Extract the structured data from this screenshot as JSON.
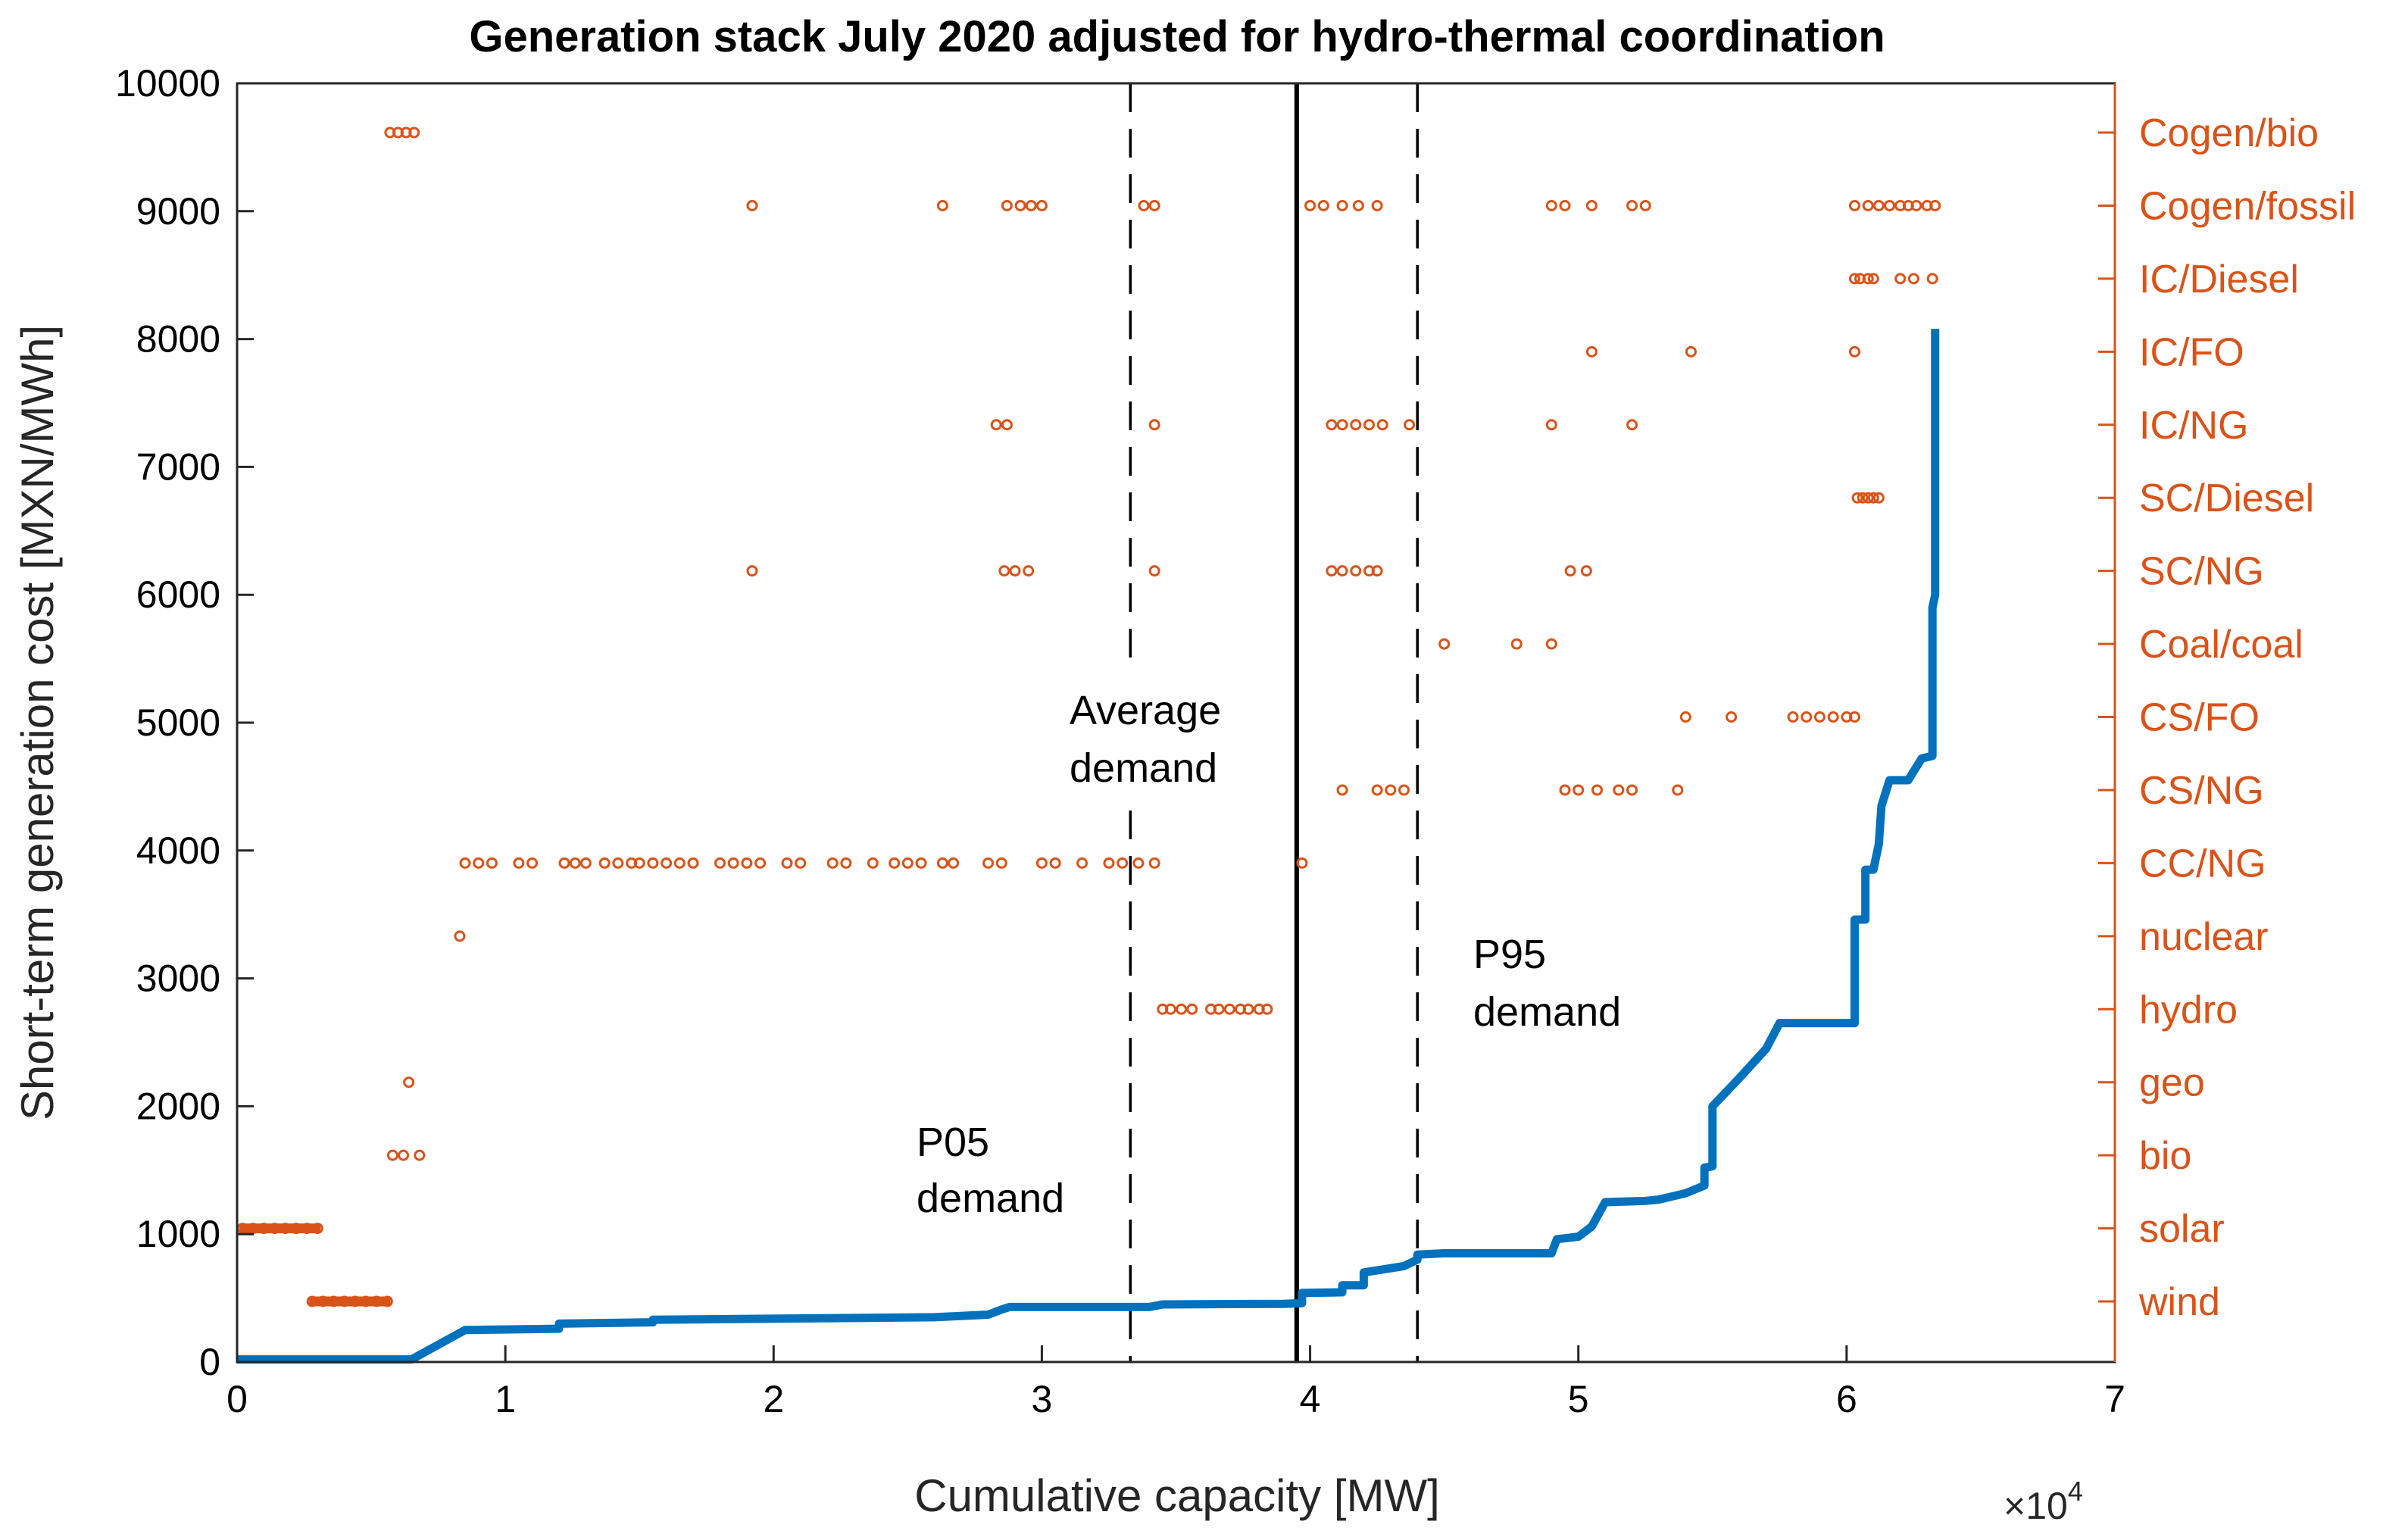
{
  "chart_data": {
    "type": "line+scatter",
    "title": "Generation stack July 2020 adjusted for hydro-thermal coordination",
    "xlabel": "Cumulative capacity [MW]",
    "ylabel": "Short-term generation cost [MXN/MWh]",
    "x_exponent_label": "×10",
    "x_exponent_power": "4",
    "xlim": [
      0,
      7
    ],
    "ylim": [
      0,
      10000
    ],
    "xticks": [
      0,
      1,
      2,
      3,
      4,
      5,
      6,
      7
    ],
    "yticks": [
      0,
      1000,
      2000,
      3000,
      4000,
      5000,
      6000,
      7000,
      8000,
      9000,
      10000
    ],
    "right_axis_labels": [
      "wind",
      "solar",
      "bio",
      "geo",
      "hydro",
      "nuclear",
      "CC/NG",
      "CS/NG",
      "CS/FO",
      "Coal/coal",
      "SC/NG",
      "SC/Diesel",
      "IC/NG",
      "IC/FO",
      "IC/Diesel",
      "Cogen/fossil",
      "Cogen/bio"
    ],
    "colors": {
      "stack": "#0072BD",
      "tech": "#D95319",
      "axis": "#000000",
      "right_axis": "#D95319"
    },
    "annotations": [
      {
        "label": "P05 demand",
        "line1": "P05",
        "line2": "demand",
        "x": 3.33,
        "style": "dashed"
      },
      {
        "label": "Average demand",
        "line1": "Average",
        "line2": "demand",
        "x": 3.95,
        "style": "solid"
      },
      {
        "label": "P95 demand",
        "line1": "P95",
        "line2": "demand",
        "x": 4.4,
        "style": "dashed"
      }
    ],
    "series": [
      {
        "name": "Generation stack (marginal cost)",
        "type": "step-line",
        "points": [
          [
            0,
            20
          ],
          [
            0.65,
            20
          ],
          [
            0.85,
            250
          ],
          [
            1.2,
            260
          ],
          [
            1.2,
            300
          ],
          [
            1.55,
            310
          ],
          [
            1.55,
            330
          ],
          [
            2.6,
            350
          ],
          [
            2.8,
            370
          ],
          [
            2.85,
            410
          ],
          [
            2.88,
            430
          ],
          [
            3.4,
            430
          ],
          [
            3.45,
            450
          ],
          [
            3.9,
            455
          ],
          [
            3.97,
            460
          ],
          [
            3.97,
            540
          ],
          [
            4.12,
            545
          ],
          [
            4.12,
            600
          ],
          [
            4.2,
            600
          ],
          [
            4.2,
            700
          ],
          [
            4.35,
            750
          ],
          [
            4.4,
            800
          ],
          [
            4.4,
            840
          ],
          [
            4.5,
            850
          ],
          [
            4.9,
            850
          ],
          [
            4.92,
            960
          ],
          [
            5.0,
            980
          ],
          [
            5.05,
            1060
          ],
          [
            5.1,
            1250
          ],
          [
            5.25,
            1260
          ],
          [
            5.3,
            1270
          ],
          [
            5.4,
            1320
          ],
          [
            5.47,
            1380
          ],
          [
            5.47,
            1520
          ],
          [
            5.5,
            1530
          ],
          [
            5.5,
            2000
          ],
          [
            5.6,
            2220
          ],
          [
            5.7,
            2450
          ],
          [
            5.75,
            2650
          ],
          [
            6.03,
            2650
          ],
          [
            6.03,
            3460
          ],
          [
            6.07,
            3460
          ],
          [
            6.07,
            3850
          ],
          [
            6.1,
            3850
          ],
          [
            6.12,
            4050
          ],
          [
            6.13,
            4350
          ],
          [
            6.16,
            4550
          ],
          [
            6.23,
            4550
          ],
          [
            6.25,
            4620
          ],
          [
            6.28,
            4720
          ],
          [
            6.32,
            4740
          ],
          [
            6.32,
            5900
          ],
          [
            6.33,
            6000
          ],
          [
            6.33,
            8080
          ]
        ]
      },
      {
        "name": "Technology markers",
        "type": "scatter",
        "note": "y = technology row (0=wind ... 16=Cogen/bio), x in 1e4 MW",
        "rows": [
          {
            "tech": "wind",
            "x": [
              0.28,
              0.32,
              0.36,
              0.4,
              0.44,
              0.48,
              0.52,
              0.56
            ]
          },
          {
            "tech": "solar",
            "x": [
              0.02,
              0.06,
              0.1,
              0.14,
              0.18,
              0.22,
              0.26,
              0.3
            ]
          },
          {
            "tech": "bio",
            "x": [
              0.58,
              0.62,
              0.68
            ]
          },
          {
            "tech": "geo",
            "x": [
              0.64
            ]
          },
          {
            "tech": "hydro",
            "x": [
              3.45,
              3.48,
              3.52,
              3.56,
              3.63,
              3.66,
              3.7,
              3.74,
              3.77,
              3.81,
              3.84
            ]
          },
          {
            "tech": "nuclear",
            "x": [
              0.83
            ]
          },
          {
            "tech": "CC/NG",
            "x": [
              0.85,
              0.9,
              0.95,
              1.05,
              1.1,
              1.22,
              1.26,
              1.3,
              1.37,
              1.42,
              1.47,
              1.5,
              1.55,
              1.6,
              1.65,
              1.7,
              1.8,
              1.85,
              1.9,
              1.95,
              2.05,
              2.1,
              2.22,
              2.27,
              2.37,
              2.45,
              2.5,
              2.55,
              2.63,
              2.67,
              2.8,
              2.85,
              3.0,
              3.05,
              3.15,
              3.25,
              3.3,
              3.36,
              3.42,
              3.97
            ]
          },
          {
            "tech": "CS/NG",
            "x": [
              4.12,
              4.25,
              4.3,
              4.35,
              4.95,
              5.0,
              5.07,
              5.15,
              5.2,
              5.37
            ]
          },
          {
            "tech": "CS/FO",
            "x": [
              5.4,
              5.57,
              5.8,
              5.85,
              5.9,
              5.95,
              6.0,
              6.03
            ]
          },
          {
            "tech": "Coal/coal",
            "x": [
              4.5,
              4.77,
              4.9
            ]
          },
          {
            "tech": "SC/NG",
            "x": [
              1.92,
              2.86,
              2.9,
              2.95,
              3.42,
              4.08,
              4.12,
              4.17,
              4.22,
              4.25,
              4.97,
              5.03
            ]
          },
          {
            "tech": "SC/Diesel",
            "x": [
              6.04,
              6.06,
              6.08,
              6.1,
              6.12
            ]
          },
          {
            "tech": "IC/NG",
            "x": [
              2.83,
              2.87,
              3.42,
              4.08,
              4.12,
              4.17,
              4.22,
              4.27,
              4.37,
              4.9,
              5.2
            ]
          },
          {
            "tech": "IC/FO",
            "x": [
              5.05,
              5.42,
              6.03
            ]
          },
          {
            "tech": "IC/Diesel",
            "x": [
              6.03,
              6.05,
              6.08,
              6.1,
              6.2,
              6.25,
              6.32
            ]
          },
          {
            "tech": "Cogen/fossil",
            "x": [
              1.92,
              2.63,
              2.87,
              2.92,
              2.96,
              3.0,
              3.38,
              3.42,
              4.0,
              4.05,
              4.12,
              4.18,
              4.25,
              4.9,
              4.95,
              5.05,
              5.2,
              5.25,
              6.03,
              6.08,
              6.12,
              6.16,
              6.2,
              6.23,
              6.26,
              6.3,
              6.33
            ]
          },
          {
            "tech": "Cogen/bio",
            "x": [
              0.57,
              0.6,
              0.63,
              0.66
            ]
          }
        ]
      }
    ]
  }
}
